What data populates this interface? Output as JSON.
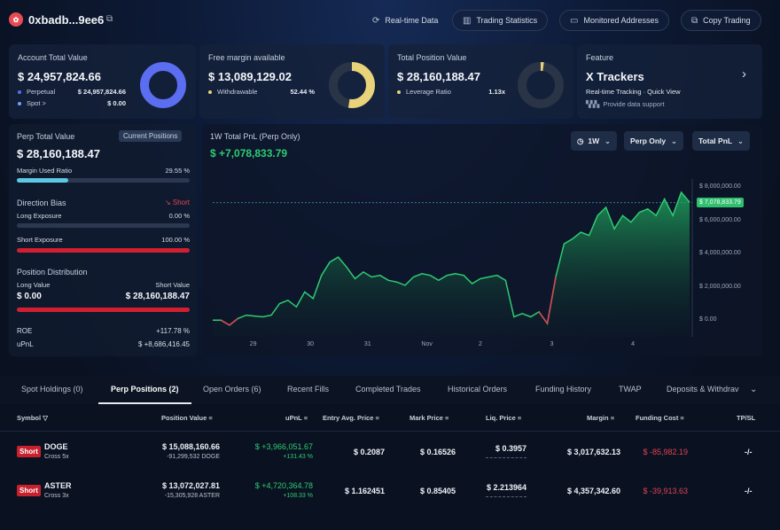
{
  "header": {
    "address": "0xbadb...9ee6",
    "buttons": [
      "Real-time Data",
      "Trading Statistics",
      "Monitored Addresses",
      "Copy Trading"
    ]
  },
  "cards": {
    "account": {
      "title": "Account Total Value",
      "value": "$ 24,957,824.66",
      "perp_label": "Perpetual",
      "perp_value": "$ 24,957,824.66",
      "spot_label": "Spot >",
      "spot_value": "$ 0.00"
    },
    "margin": {
      "title": "Free margin available",
      "value": "$ 13,089,129.02",
      "withdraw_label": "Withdrawable",
      "withdraw_value": "52.44 %",
      "fraction": 0.5244
    },
    "position": {
      "title": "Total Position Value",
      "value": "$ 28,160,188.47",
      "lev_label": "Leverage Ratio",
      "lev_value": "1.13x"
    },
    "feature": {
      "title": "Feature",
      "name": "X Trackers",
      "desc": "Real-time Tracking · Quick View",
      "provider": "Provide data support"
    }
  },
  "left_panel": {
    "perp_title": "Perp Total Value",
    "chip": "Current Positions",
    "perp_value": "$ 28,160,188.47",
    "margin_used_label": "Margin Used Ratio",
    "margin_used_value": "29.55 %",
    "margin_used_fraction": 0.2955,
    "direction_title": "Direction Bias",
    "direction_value": "Short",
    "long_exp_label": "Long Exposure",
    "long_exp_value": "0.00 %",
    "short_exp_label": "Short Exposure",
    "short_exp_value": "100.00 %",
    "dist_title": "Position Distribution",
    "long_value_label": "Long Value",
    "short_value_label": "Short Value",
    "long_value": "$ 0.00",
    "short_value": "$ 28,160,188.47",
    "roe_label": "ROE",
    "roe_value": "+117.78 %",
    "upnl_label": "uPnL",
    "upnl_value": "$ +8,686,416.45"
  },
  "chart_panel": {
    "title": "1W Total PnL (Perp Only)",
    "value": "$ +7,078,833.79",
    "dd_period": "1W",
    "dd_scope": "Perp Only",
    "dd_metric": "Total PnL"
  },
  "chart_data": {
    "type": "area",
    "ylim": [
      -1000000,
      8500000
    ],
    "yticks": [
      0,
      2000000,
      4000000,
      6000000,
      8000000
    ],
    "ytick_labels": [
      "$ 0.00",
      "$ 2,000,000.00",
      "$ 4,000,000.00",
      "$ 6,000,000.00",
      "$ 8,000,000.00"
    ],
    "xticks": [
      {
        "label": "29",
        "pos": 0.085
      },
      {
        "label": "30",
        "pos": 0.205
      },
      {
        "label": "31",
        "pos": 0.325
      },
      {
        "label": "Nov",
        "pos": 0.445
      },
      {
        "label": "2",
        "pos": 0.565
      },
      {
        "label": "3",
        "pos": 0.715
      },
      {
        "label": "4",
        "pos": 0.885
      }
    ],
    "last_label": "$ 7,078,833.79",
    "last_value": 7078833.79,
    "values": [
      0,
      0,
      -300000,
      100000,
      300000,
      250000,
      200000,
      300000,
      1000000,
      1200000,
      800000,
      1700000,
      1300000,
      2700000,
      3500000,
      3800000,
      3200000,
      2500000,
      2900000,
      2600000,
      2700000,
      2400000,
      2300000,
      2100000,
      2600000,
      2800000,
      2700000,
      2400000,
      2700000,
      2800000,
      2700000,
      2200000,
      2500000,
      2600000,
      2700000,
      2400000,
      200000,
      400000,
      200000,
      500000,
      -200000,
      2600000,
      4600000,
      4900000,
      5300000,
      5100000,
      6300000,
      6800000,
      5500000,
      6300000,
      5900000,
      6500000,
      6700000,
      6300000,
      7300000,
      6300000,
      7700000,
      7100000
    ]
  },
  "tabs": [
    "Spot Holdings (0)",
    "Perp Positions (2)",
    "Open Orders (6)",
    "Recent Fills",
    "Completed Trades",
    "Historical Orders",
    "Funding History",
    "TWAP",
    "Deposits & Withdrav"
  ],
  "table": {
    "headers": [
      "Symbol",
      "Position Value",
      "uPnL",
      "Entry Avg. Price",
      "Mark Price",
      "Liq. Price",
      "Margin",
      "Funding Cost",
      "TP/SL"
    ],
    "rows": [
      {
        "side": "Short",
        "symbol": "DOGE",
        "leverage": "Cross 5x",
        "pos_value": "$ 15,088,160.66",
        "pos_size": "-91,299,532 DOGE",
        "upnl": "$ +3,966,051.67",
        "upnl_pct": "+131.43 %",
        "entry": "$ 0.2087",
        "mark": "$ 0.16526",
        "liq": "$ 0.3957",
        "margin": "$ 3,017,632.13",
        "funding": "$ -85,982.19",
        "tpsl": "-/-"
      },
      {
        "side": "Short",
        "symbol": "ASTER",
        "leverage": "Cross 3x",
        "pos_value": "$ 13,072,027.81",
        "pos_size": "-15,305,928 ASTER",
        "upnl": "$ +4,720,364.78",
        "upnl_pct": "+108.33 %",
        "entry": "$ 1.162451",
        "mark": "$ 0.85405",
        "liq": "$ 2.213964",
        "margin": "$ 4,357,342.60",
        "funding": "$ -39,913.63",
        "tpsl": "-/-"
      }
    ]
  },
  "colors": {
    "accent_blue": "#5b6df0",
    "accent_yellow": "#e8d27a",
    "up": "#2ecc71",
    "down": "#e0434f"
  }
}
